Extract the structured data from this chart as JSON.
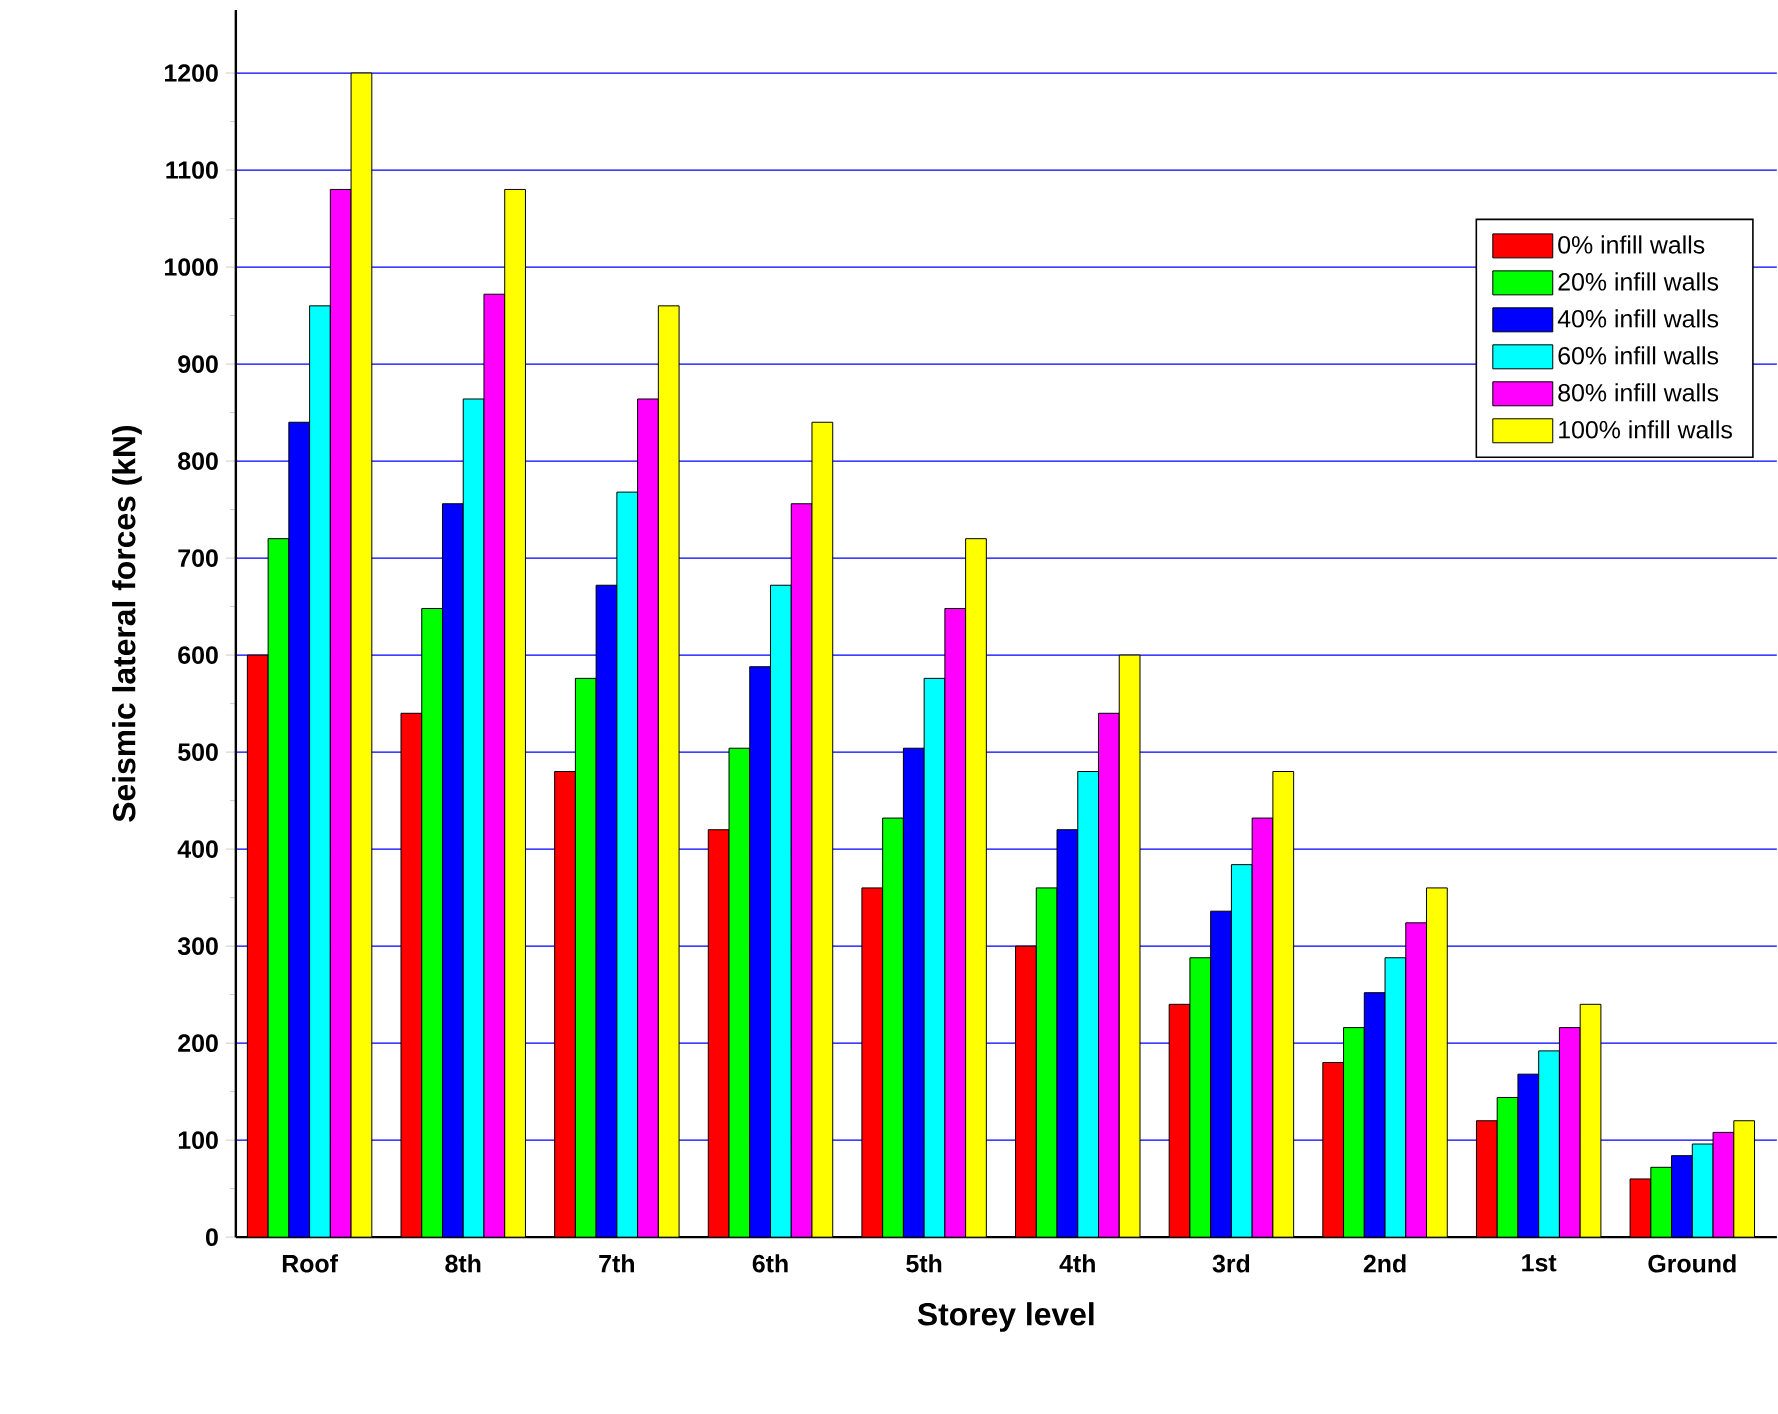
{
  "chart_data": {
    "type": "bar",
    "xlabel": "Storey level",
    "ylabel": "Seismic lateral forces (kN)",
    "categories": [
      "Roof",
      "8th",
      "7th",
      "6th",
      "5th",
      "4th",
      "3rd",
      "2nd",
      "1st",
      "Ground"
    ],
    "series": [
      {
        "name": "0% infill walls",
        "color": "#ff0000",
        "values": [
          600,
          540,
          480,
          420,
          360,
          300,
          240,
          180,
          120,
          60
        ]
      },
      {
        "name": "20% infill walls",
        "color": "#00ff00",
        "values": [
          720,
          648,
          576,
          504,
          432,
          360,
          288,
          216,
          144,
          72
        ]
      },
      {
        "name": "40% infill walls",
        "color": "#0000ff",
        "values": [
          840,
          756,
          672,
          588,
          504,
          420,
          336,
          252,
          168,
          84
        ]
      },
      {
        "name": "60% infill walls",
        "color": "#00ffff",
        "values": [
          960,
          864,
          768,
          672,
          576,
          480,
          384,
          288,
          192,
          96
        ]
      },
      {
        "name": "80% infill walls",
        "color": "#ff00ff",
        "values": [
          1080,
          972,
          864,
          756,
          648,
          540,
          432,
          324,
          216,
          108
        ]
      },
      {
        "name": "100% infill walls",
        "color": "#ffff00",
        "values": [
          1200,
          1080,
          960,
          840,
          720,
          600,
          480,
          360,
          240,
          120
        ]
      }
    ],
    "ylim": [
      0,
      1265
    ],
    "yticks": [
      0,
      100,
      200,
      300,
      400,
      500,
      600,
      700,
      800,
      900,
      1000,
      1100,
      1200
    ],
    "grid": "y",
    "legend": "top right"
  }
}
